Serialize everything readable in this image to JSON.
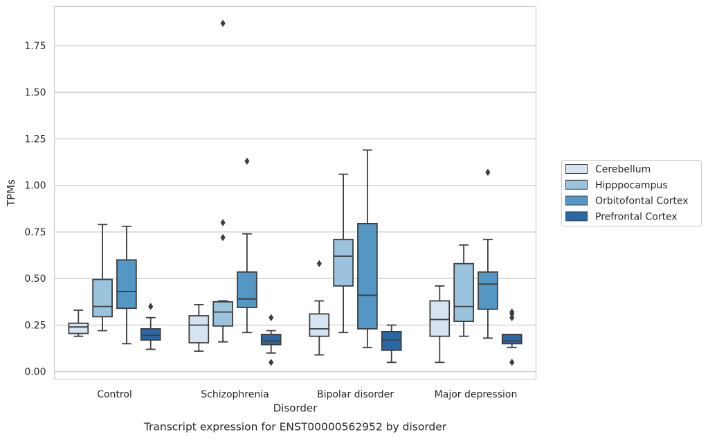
{
  "chart_data": {
    "type": "box",
    "title": "",
    "caption": "Transcript expression for ENST00000562952 by disorder",
    "xlabel": "Disorder",
    "ylabel": "TPMs",
    "ylim": [
      -0.04,
      1.96
    ],
    "yticks": [
      "0.00",
      "0.25",
      "0.50",
      "0.75",
      "1.00",
      "1.25",
      "1.50",
      "1.75"
    ],
    "grid": "horizontal",
    "legend_position": "right",
    "categories": [
      "Control",
      "Schizophrenia",
      "Bipolar disorder",
      "Major depression"
    ],
    "series": [
      {
        "name": "Cerebellum",
        "color": "#d6e4f1",
        "boxes": [
          {
            "whisker_low": 0.19,
            "q1": 0.205,
            "median": 0.24,
            "q3": 0.26,
            "whisker_high": 0.33,
            "outliers": []
          },
          {
            "whisker_low": 0.11,
            "q1": 0.155,
            "median": 0.25,
            "q3": 0.3,
            "whisker_high": 0.36,
            "outliers": []
          },
          {
            "whisker_low": 0.09,
            "q1": 0.19,
            "median": 0.23,
            "q3": 0.31,
            "whisker_high": 0.38,
            "outliers": [
              0.58
            ]
          },
          {
            "whisker_low": 0.05,
            "q1": 0.19,
            "median": 0.28,
            "q3": 0.38,
            "whisker_high": 0.46,
            "outliers": []
          }
        ]
      },
      {
        "name": "Hipppocampus",
        "color": "#9bc3dd",
        "boxes": [
          {
            "whisker_low": 0.22,
            "q1": 0.295,
            "median": 0.35,
            "q3": 0.495,
            "whisker_high": 0.79,
            "outliers": []
          },
          {
            "whisker_low": 0.16,
            "q1": 0.245,
            "median": 0.32,
            "q3": 0.375,
            "whisker_high": 0.38,
            "outliers": [
              0.72,
              0.8,
              1.87
            ]
          },
          {
            "whisker_low": 0.21,
            "q1": 0.46,
            "median": 0.62,
            "q3": 0.71,
            "whisker_high": 1.06,
            "outliers": []
          },
          {
            "whisker_low": 0.19,
            "q1": 0.27,
            "median": 0.35,
            "q3": 0.58,
            "whisker_high": 0.68,
            "outliers": []
          }
        ]
      },
      {
        "name": "Orbitofontal Cortex",
        "color": "#5496c4",
        "boxes": [
          {
            "whisker_low": 0.15,
            "q1": 0.34,
            "median": 0.43,
            "q3": 0.6,
            "whisker_high": 0.78,
            "outliers": []
          },
          {
            "whisker_low": 0.21,
            "q1": 0.345,
            "median": 0.39,
            "q3": 0.535,
            "whisker_high": 0.74,
            "outliers": [
              1.13
            ]
          },
          {
            "whisker_low": 0.13,
            "q1": 0.23,
            "median": 0.41,
            "q3": 0.795,
            "whisker_high": 1.19,
            "outliers": []
          },
          {
            "whisker_low": 0.18,
            "q1": 0.335,
            "median": 0.47,
            "q3": 0.535,
            "whisker_high": 0.71,
            "outliers": [
              1.07
            ]
          }
        ]
      },
      {
        "name": "Prefrontal Cortex",
        "color": "#2a68a5",
        "boxes": [
          {
            "whisker_low": 0.12,
            "q1": 0.17,
            "median": 0.195,
            "q3": 0.23,
            "whisker_high": 0.29,
            "outliers": [
              0.35
            ]
          },
          {
            "whisker_low": 0.1,
            "q1": 0.145,
            "median": 0.165,
            "q3": 0.2,
            "whisker_high": 0.22,
            "outliers": [
              0.05,
              0.29
            ]
          },
          {
            "whisker_low": 0.05,
            "q1": 0.115,
            "median": 0.17,
            "q3": 0.215,
            "whisker_high": 0.25,
            "outliers": []
          },
          {
            "whisker_low": 0.13,
            "q1": 0.15,
            "median": 0.165,
            "q3": 0.2,
            "whisker_high": 0.2,
            "outliers": [
              0.05,
              0.29,
              0.31,
              0.32
            ]
          }
        ]
      }
    ]
  }
}
